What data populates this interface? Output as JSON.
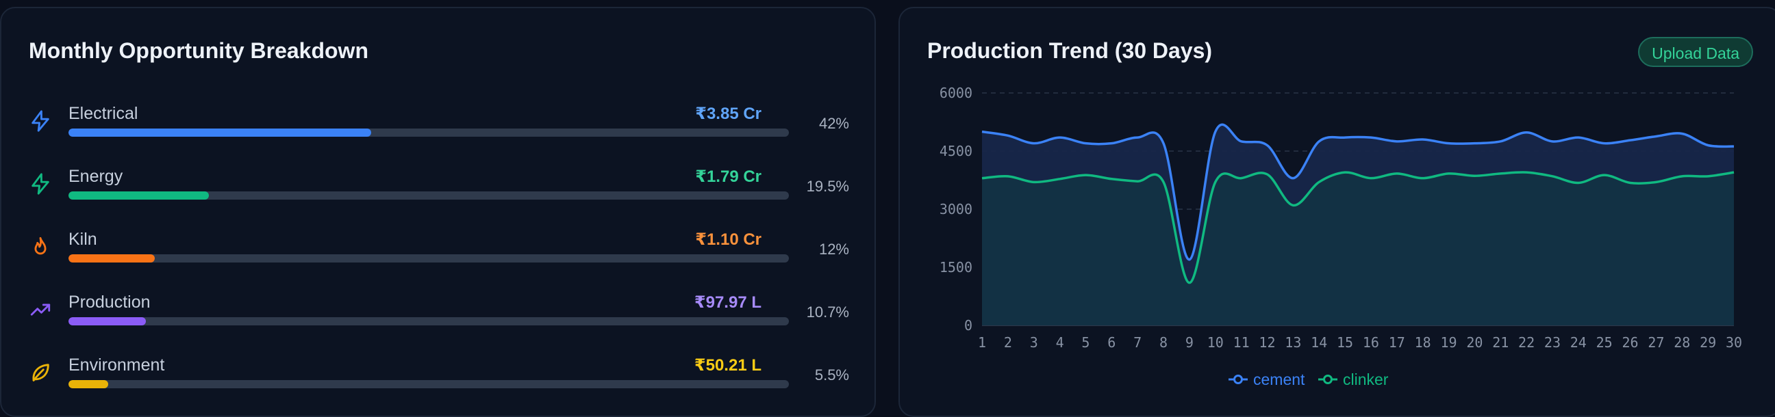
{
  "left_card": {
    "title": "Monthly Opportunity Breakdown",
    "rows": [
      {
        "label": "Electrical",
        "value": "₹3.85 Cr",
        "pct": "42%",
        "fraction": 0.42,
        "color": "#3b82f6",
        "icon": "lightning-icon"
      },
      {
        "label": "Energy",
        "value": "₹1.79 Cr",
        "pct": "19.5%",
        "fraction": 0.195,
        "color": "#10b981",
        "icon": "lightning-icon"
      },
      {
        "label": "Kiln",
        "value": "₹1.10 Cr",
        "pct": "12%",
        "fraction": 0.12,
        "color": "#f97316",
        "icon": "flame-icon"
      },
      {
        "label": "Production",
        "value": "₹97.97 L",
        "pct": "10.7%",
        "fraction": 0.107,
        "color": "#8b5cf6",
        "icon": "trending-up-icon"
      },
      {
        "label": "Environment",
        "value": "₹50.21 L",
        "pct": "5.5%",
        "fraction": 0.055,
        "color": "#eab308",
        "icon": "leaf-icon"
      }
    ]
  },
  "right_card": {
    "title": "Production Trend (30 Days)",
    "upload_label": "Upload Data"
  },
  "chart_data": {
    "type": "area",
    "x": [
      1,
      2,
      3,
      4,
      5,
      6,
      7,
      8,
      9,
      10,
      11,
      12,
      13,
      14,
      15,
      16,
      17,
      18,
      19,
      20,
      21,
      22,
      23,
      24,
      25,
      26,
      27,
      28,
      29,
      30
    ],
    "ylim": [
      0,
      6000
    ],
    "yticks": [
      0,
      1500,
      3000,
      4500,
      6000
    ],
    "grid": true,
    "legend_position": "bottom",
    "series": [
      {
        "name": "cement",
        "color": "#3b82f6",
        "values": [
          5000,
          4900,
          4700,
          4850,
          4700,
          4700,
          4850,
          4700,
          1700,
          5000,
          4750,
          4650,
          3800,
          4750,
          4850,
          4850,
          4750,
          4800,
          4700,
          4700,
          4750,
          4980,
          4750,
          4850,
          4700,
          4780,
          4880,
          4950,
          4650,
          4620
        ]
      },
      {
        "name": "clinker",
        "color": "#10b981",
        "values": [
          3800,
          3850,
          3700,
          3780,
          3880,
          3780,
          3720,
          3700,
          1100,
          3700,
          3800,
          3900,
          3100,
          3700,
          3950,
          3800,
          3920,
          3800,
          3920,
          3860,
          3920,
          3950,
          3850,
          3680,
          3880,
          3680,
          3700,
          3850,
          3850,
          3950
        ]
      }
    ]
  }
}
